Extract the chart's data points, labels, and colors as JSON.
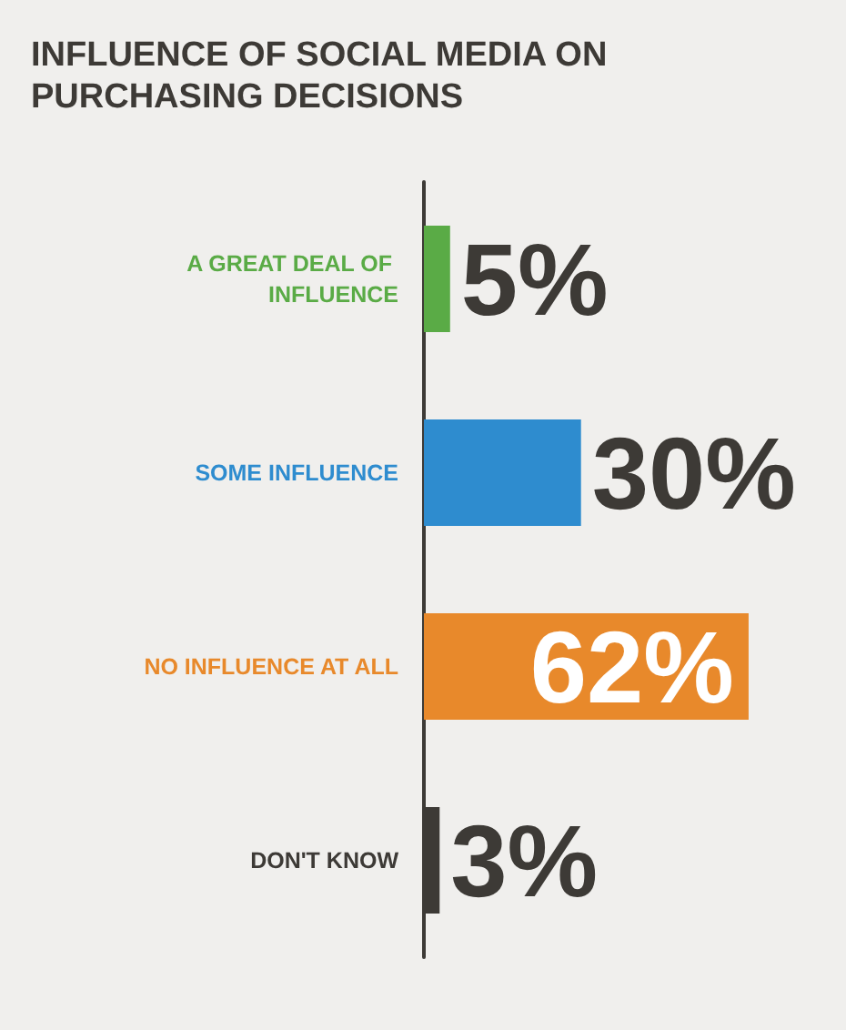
{
  "chart_data": {
    "type": "bar",
    "orientation": "horizontal",
    "title": "INFLUENCE OF SOCIAL MEDIA ON PURCHASING DECISIONS",
    "categories": [
      "A GREAT DEAL OF INFLUENCE",
      "SOME INFLUENCE",
      "NO INFLUENCE AT ALL",
      "DON'T KNOW"
    ],
    "values": [
      5,
      30,
      62,
      3
    ],
    "colors": [
      "#5aab46",
      "#2e8ccf",
      "#e8892b",
      "#3d3a36"
    ],
    "value_labels": [
      "5%",
      "30%",
      "62%",
      "3%"
    ],
    "tick_labels": "y"
  }
}
